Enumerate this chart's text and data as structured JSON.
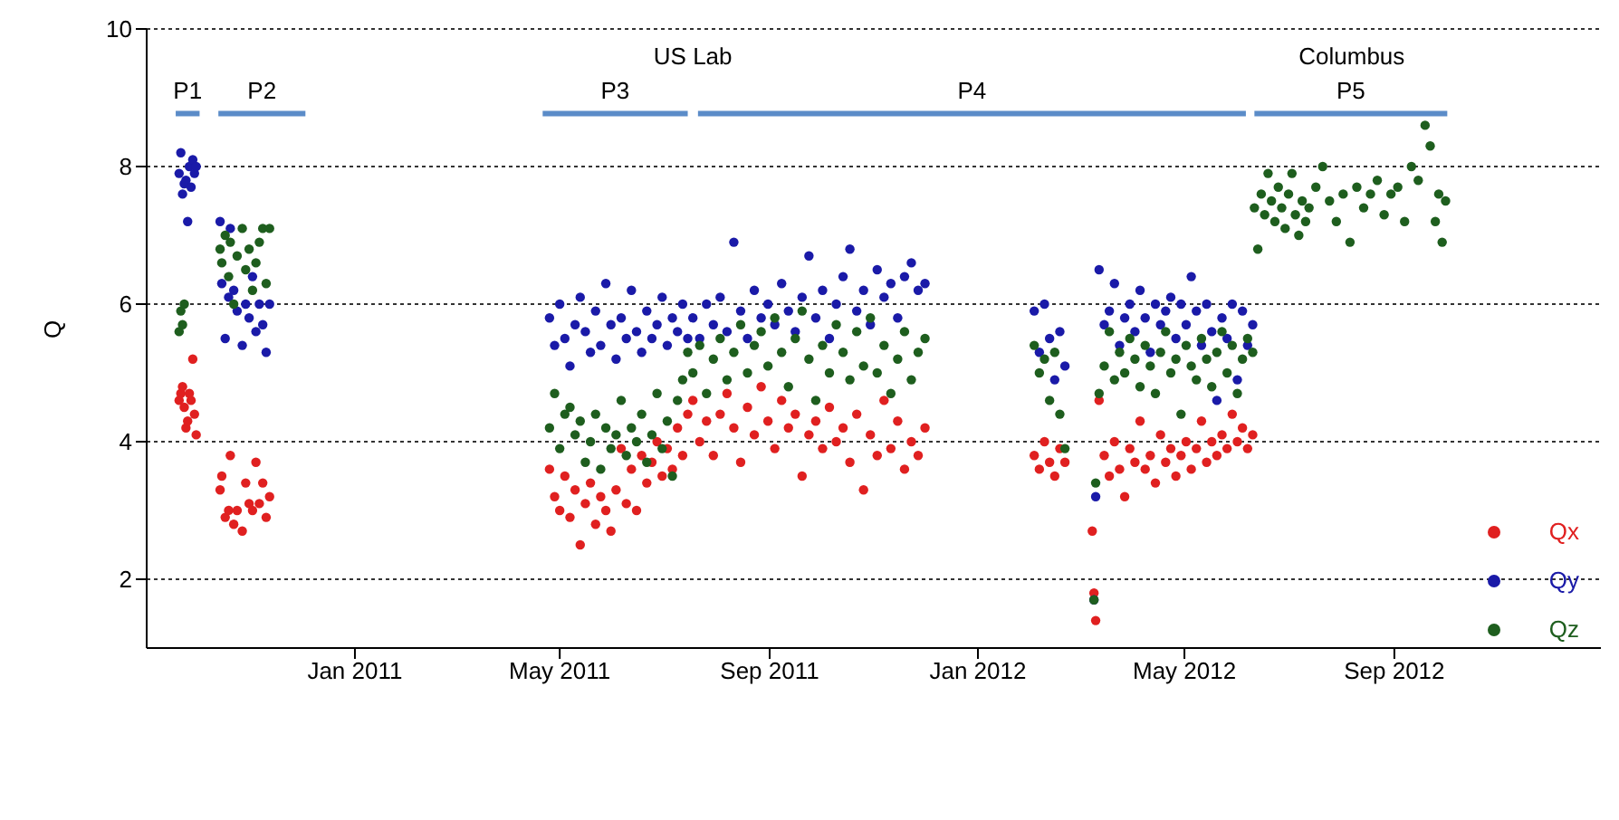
{
  "chart_data": {
    "type": "scatter",
    "ylabel": "Q",
    "xlim": [
      "2010-09-01",
      "2012-12-31"
    ],
    "xticks": [
      {
        "value": "2011-01-01",
        "label": "Jan 2011"
      },
      {
        "value": "2011-05-01",
        "label": "May 2011"
      },
      {
        "value": "2011-09-01",
        "label": "Sep 2011"
      },
      {
        "value": "2012-01-01",
        "label": "Jan 2012"
      },
      {
        "value": "2012-05-01",
        "label": "May 2012"
      },
      {
        "value": "2012-09-01",
        "label": "Sep 2012"
      }
    ],
    "ylim": [
      1,
      10
    ],
    "yticks": [
      2,
      4,
      6,
      8,
      10
    ],
    "grid": "y",
    "legend": "bottom right",
    "marker": "circle",
    "annotations": [
      {
        "text": "US Lab",
        "x": "2011-07-18",
        "y": 8.77
      },
      {
        "text": "Columbus",
        "x": "2012-08-07",
        "y": 8.77
      }
    ],
    "series": [
      {
        "type": "line",
        "name": "P1",
        "marker": "none",
        "color": "#5b8cc8",
        "x": [
          "2010-09-18",
          "2010-10-02"
        ],
        "values": [
          8.77,
          8.77
        ]
      },
      {
        "type": "line",
        "name": "P2",
        "marker": "none",
        "color": "#5b8cc8",
        "x": [
          "2010-10-13",
          "2010-12-03"
        ],
        "values": [
          8.77,
          8.77
        ]
      },
      {
        "type": "line",
        "name": "P3",
        "marker": "none",
        "color": "#5b8cc8",
        "x": [
          "2011-04-21",
          "2011-07-15"
        ],
        "values": [
          8.77,
          8.77
        ]
      },
      {
        "type": "line",
        "name": "P4",
        "marker": "none",
        "color": "#5b8cc8",
        "x": [
          "2011-07-21",
          "2012-06-06"
        ],
        "values": [
          8.77,
          8.77
        ]
      },
      {
        "type": "line",
        "name": "P5",
        "marker": "none",
        "color": "#5b8cc8",
        "x": [
          "2012-06-11",
          "2012-10-02"
        ],
        "values": [
          8.77,
          8.77
        ]
      },
      {
        "name": "Qx",
        "color": "#e02020",
        "x": [
          "2010-09-20",
          "2010-09-21",
          "2010-09-22",
          "2010-09-23",
          "2010-09-24",
          "2010-09-25",
          "2010-09-26",
          "2010-09-27",
          "2010-09-28",
          "2010-09-29",
          "2010-09-30",
          "2010-10-14",
          "2010-10-15",
          "2010-10-17",
          "2010-10-19",
          "2010-10-20",
          "2010-10-22",
          "2010-10-24",
          "2010-10-27",
          "2010-10-29",
          "2010-10-31",
          "2010-11-02",
          "2010-11-04",
          "2010-11-06",
          "2010-11-08",
          "2010-11-10",
          "2010-11-12",
          "2011-04-25",
          "2011-04-28",
          "2011-05-01",
          "2011-05-04",
          "2011-05-07",
          "2011-05-10",
          "2011-05-13",
          "2011-05-16",
          "2011-05-19",
          "2011-05-22",
          "2011-05-25",
          "2011-05-28",
          "2011-05-31",
          "2011-06-03",
          "2011-06-06",
          "2011-06-09",
          "2011-06-12",
          "2011-06-15",
          "2011-06-18",
          "2011-06-21",
          "2011-06-24",
          "2011-06-27",
          "2011-06-30",
          "2011-07-03",
          "2011-07-06",
          "2011-07-09",
          "2011-07-12",
          "2011-07-15",
          "2011-07-18",
          "2011-07-22",
          "2011-07-26",
          "2011-07-30",
          "2011-08-03",
          "2011-08-07",
          "2011-08-11",
          "2011-08-15",
          "2011-08-19",
          "2011-08-23",
          "2011-08-27",
          "2011-08-31",
          "2011-09-04",
          "2011-09-08",
          "2011-09-12",
          "2011-09-16",
          "2011-09-20",
          "2011-09-24",
          "2011-09-28",
          "2011-10-02",
          "2011-10-06",
          "2011-10-10",
          "2011-10-14",
          "2011-10-18",
          "2011-10-22",
          "2011-10-26",
          "2011-10-30",
          "2011-11-03",
          "2011-11-07",
          "2011-11-11",
          "2011-11-15",
          "2011-11-19",
          "2011-11-23",
          "2011-11-27",
          "2011-12-01",
          "2012-02-03",
          "2012-02-06",
          "2012-02-09",
          "2012-02-12",
          "2012-02-15",
          "2012-02-18",
          "2012-02-21",
          "2012-03-08",
          "2012-03-09",
          "2012-03-10",
          "2012-03-12",
          "2012-03-15",
          "2012-03-18",
          "2012-03-21",
          "2012-03-24",
          "2012-03-27",
          "2012-03-30",
          "2012-04-02",
          "2012-04-05",
          "2012-04-08",
          "2012-04-11",
          "2012-04-14",
          "2012-04-17",
          "2012-04-20",
          "2012-04-23",
          "2012-04-26",
          "2012-04-29",
          "2012-05-02",
          "2012-05-05",
          "2012-05-08",
          "2012-05-11",
          "2012-05-14",
          "2012-05-17",
          "2012-05-20",
          "2012-05-23",
          "2012-05-26",
          "2012-05-29",
          "2012-06-01",
          "2012-06-04",
          "2012-06-07",
          "2012-06-10"
        ],
        "values": [
          4.6,
          4.7,
          4.8,
          4.5,
          4.2,
          4.3,
          4.7,
          4.6,
          5.2,
          4.4,
          4.1,
          3.3,
          3.5,
          2.9,
          3.0,
          3.8,
          2.8,
          3.0,
          2.7,
          3.4,
          3.1,
          3.0,
          3.7,
          3.1,
          3.4,
          2.9,
          3.2,
          3.6,
          3.2,
          3.0,
          3.5,
          2.9,
          3.3,
          2.5,
          3.1,
          3.4,
          2.8,
          3.2,
          3.0,
          2.7,
          3.3,
          3.9,
          3.1,
          3.6,
          3.0,
          3.8,
          3.4,
          3.7,
          4.0,
          3.5,
          3.9,
          3.6,
          4.2,
          3.8,
          4.4,
          4.6,
          4.0,
          4.3,
          3.8,
          4.4,
          4.7,
          4.2,
          3.7,
          4.5,
          4.1,
          4.8,
          4.3,
          3.9,
          4.6,
          4.2,
          4.4,
          3.5,
          4.1,
          4.3,
          3.9,
          4.5,
          4.0,
          4.2,
          3.7,
          4.4,
          3.3,
          4.1,
          3.8,
          4.6,
          3.9,
          4.3,
          3.6,
          4.0,
          3.8,
          4.2,
          3.8,
          3.6,
          4.0,
          3.7,
          3.5,
          3.9,
          3.7,
          2.7,
          1.8,
          1.4,
          4.6,
          3.8,
          3.5,
          4.0,
          3.6,
          3.2,
          3.9,
          3.7,
          4.3,
          3.6,
          3.8,
          3.4,
          4.1,
          3.7,
          3.9,
          3.5,
          3.8,
          4.0,
          3.6,
          3.9,
          4.3,
          3.7,
          4.0,
          3.8,
          4.1,
          3.9,
          4.4,
          4.0,
          4.2,
          3.9,
          4.1
        ]
      },
      {
        "name": "Qy",
        "color": "#1a1aa8",
        "x": [
          "2010-09-20",
          "2010-09-21",
          "2010-09-22",
          "2010-09-23",
          "2010-09-24",
          "2010-09-25",
          "2010-09-26",
          "2010-09-27",
          "2010-09-28",
          "2010-09-29",
          "2010-09-30",
          "2010-10-14",
          "2010-10-15",
          "2010-10-17",
          "2010-10-19",
          "2010-10-20",
          "2010-10-22",
          "2010-10-24",
          "2010-10-27",
          "2010-10-29",
          "2010-10-31",
          "2010-11-02",
          "2010-11-04",
          "2010-11-06",
          "2010-11-08",
          "2010-11-10",
          "2010-11-12",
          "2011-04-25",
          "2011-04-28",
          "2011-05-01",
          "2011-05-04",
          "2011-05-07",
          "2011-05-10",
          "2011-05-13",
          "2011-05-16",
          "2011-05-19",
          "2011-05-22",
          "2011-05-25",
          "2011-05-28",
          "2011-05-31",
          "2011-06-03",
          "2011-06-06",
          "2011-06-09",
          "2011-06-12",
          "2011-06-15",
          "2011-06-18",
          "2011-06-21",
          "2011-06-24",
          "2011-06-27",
          "2011-06-30",
          "2011-07-03",
          "2011-07-06",
          "2011-07-09",
          "2011-07-12",
          "2011-07-15",
          "2011-07-18",
          "2011-07-22",
          "2011-07-26",
          "2011-07-30",
          "2011-08-03",
          "2011-08-07",
          "2011-08-11",
          "2011-08-15",
          "2011-08-19",
          "2011-08-23",
          "2011-08-27",
          "2011-08-31",
          "2011-09-04",
          "2011-09-08",
          "2011-09-12",
          "2011-09-16",
          "2011-09-20",
          "2011-09-24",
          "2011-09-28",
          "2011-10-02",
          "2011-10-06",
          "2011-10-10",
          "2011-10-14",
          "2011-10-18",
          "2011-10-22",
          "2011-10-26",
          "2011-10-30",
          "2011-11-03",
          "2011-11-07",
          "2011-11-11",
          "2011-11-15",
          "2011-11-19",
          "2011-11-23",
          "2011-11-27",
          "2011-12-01",
          "2012-02-03",
          "2012-02-06",
          "2012-02-09",
          "2012-02-12",
          "2012-02-15",
          "2012-02-18",
          "2012-02-21",
          "2012-03-09",
          "2012-03-10",
          "2012-03-12",
          "2012-03-15",
          "2012-03-18",
          "2012-03-21",
          "2012-03-24",
          "2012-03-27",
          "2012-03-30",
          "2012-04-02",
          "2012-04-05",
          "2012-04-08",
          "2012-04-11",
          "2012-04-14",
          "2012-04-17",
          "2012-04-20",
          "2012-04-23",
          "2012-04-26",
          "2012-04-29",
          "2012-05-02",
          "2012-05-05",
          "2012-05-08",
          "2012-05-11",
          "2012-05-14",
          "2012-05-17",
          "2012-05-20",
          "2012-05-23",
          "2012-05-26",
          "2012-05-29",
          "2012-06-01",
          "2012-06-04",
          "2012-06-07",
          "2012-06-10"
        ],
        "values": [
          7.9,
          8.2,
          7.6,
          7.75,
          7.8,
          7.2,
          8.0,
          7.7,
          8.1,
          7.9,
          8.0,
          7.2,
          6.3,
          5.5,
          6.1,
          7.1,
          6.2,
          5.9,
          5.4,
          6.0,
          5.8,
          6.4,
          5.6,
          6.0,
          5.7,
          5.3,
          6.0,
          5.8,
          5.4,
          6.0,
          5.5,
          5.1,
          5.7,
          6.1,
          5.6,
          5.3,
          5.9,
          5.4,
          6.3,
          5.7,
          5.2,
          5.8,
          5.5,
          6.2,
          5.6,
          5.3,
          5.9,
          5.5,
          5.7,
          6.1,
          5.4,
          5.8,
          5.6,
          6.0,
          5.5,
          5.8,
          5.5,
          6.0,
          5.7,
          6.1,
          5.6,
          6.9,
          5.9,
          5.5,
          6.2,
          5.8,
          6.0,
          5.7,
          6.3,
          5.9,
          5.6,
          6.1,
          6.7,
          5.8,
          6.2,
          5.5,
          6.0,
          6.4,
          6.8,
          5.9,
          6.2,
          5.7,
          6.5,
          6.1,
          6.3,
          5.8,
          6.4,
          6.6,
          6.2,
          6.3,
          5.9,
          5.3,
          6.0,
          5.5,
          4.9,
          5.6,
          5.1,
          1.7,
          3.2,
          6.5,
          5.7,
          5.9,
          6.3,
          5.4,
          5.8,
          6.0,
          5.6,
          6.2,
          5.8,
          5.3,
          6.0,
          5.7,
          5.9,
          6.1,
          5.5,
          6.0,
          5.7,
          6.4,
          5.9,
          5.4,
          6.0,
          5.6,
          4.6,
          5.8,
          5.5,
          6.0,
          4.9,
          5.9,
          5.4,
          5.7
        ]
      },
      {
        "name": "Qz",
        "color": "#1e5e1e",
        "x": [
          "2010-09-20",
          "2010-09-21",
          "2010-09-22",
          "2010-09-23",
          "2010-10-14",
          "2010-10-15",
          "2010-10-17",
          "2010-10-19",
          "2010-10-20",
          "2010-10-22",
          "2010-10-24",
          "2010-10-27",
          "2010-10-29",
          "2010-10-31",
          "2010-11-02",
          "2010-11-04",
          "2010-11-06",
          "2010-11-08",
          "2010-11-10",
          "2010-11-12",
          "2011-04-25",
          "2011-04-28",
          "2011-05-01",
          "2011-05-04",
          "2011-05-07",
          "2011-05-10",
          "2011-05-13",
          "2011-05-16",
          "2011-05-19",
          "2011-05-22",
          "2011-05-25",
          "2011-05-28",
          "2011-05-31",
          "2011-06-03",
          "2011-06-06",
          "2011-06-09",
          "2011-06-12",
          "2011-06-15",
          "2011-06-18",
          "2011-06-21",
          "2011-06-24",
          "2011-06-27",
          "2011-06-30",
          "2011-07-03",
          "2011-07-06",
          "2011-07-09",
          "2011-07-12",
          "2011-07-15",
          "2011-07-18",
          "2011-07-22",
          "2011-07-26",
          "2011-07-30",
          "2011-08-03",
          "2011-08-07",
          "2011-08-11",
          "2011-08-15",
          "2011-08-19",
          "2011-08-23",
          "2011-08-27",
          "2011-08-31",
          "2011-09-04",
          "2011-09-08",
          "2011-09-12",
          "2011-09-16",
          "2011-09-20",
          "2011-09-24",
          "2011-09-28",
          "2011-10-02",
          "2011-10-06",
          "2011-10-10",
          "2011-10-14",
          "2011-10-18",
          "2011-10-22",
          "2011-10-26",
          "2011-10-30",
          "2011-11-03",
          "2011-11-07",
          "2011-11-11",
          "2011-11-15",
          "2011-11-19",
          "2011-11-23",
          "2011-11-27",
          "2011-12-01",
          "2012-02-03",
          "2012-02-06",
          "2012-02-09",
          "2012-02-12",
          "2012-02-15",
          "2012-02-18",
          "2012-02-21",
          "2012-03-09",
          "2012-03-10",
          "2012-03-12",
          "2012-03-15",
          "2012-03-18",
          "2012-03-21",
          "2012-03-24",
          "2012-03-27",
          "2012-03-30",
          "2012-04-02",
          "2012-04-05",
          "2012-04-08",
          "2012-04-11",
          "2012-04-14",
          "2012-04-17",
          "2012-04-20",
          "2012-04-23",
          "2012-04-26",
          "2012-04-29",
          "2012-05-02",
          "2012-05-05",
          "2012-05-08",
          "2012-05-11",
          "2012-05-14",
          "2012-05-17",
          "2012-05-20",
          "2012-05-23",
          "2012-05-26",
          "2012-05-29",
          "2012-06-01",
          "2012-06-04",
          "2012-06-07",
          "2012-06-10",
          "2012-06-11",
          "2012-06-13",
          "2012-06-15",
          "2012-06-17",
          "2012-06-19",
          "2012-06-21",
          "2012-06-23",
          "2012-06-25",
          "2012-06-27",
          "2012-06-29",
          "2012-07-01",
          "2012-07-03",
          "2012-07-05",
          "2012-07-07",
          "2012-07-09",
          "2012-07-11",
          "2012-07-13",
          "2012-07-17",
          "2012-07-21",
          "2012-07-25",
          "2012-07-29",
          "2012-08-02",
          "2012-08-06",
          "2012-08-10",
          "2012-08-14",
          "2012-08-18",
          "2012-08-22",
          "2012-08-26",
          "2012-08-30",
          "2012-09-03",
          "2012-09-07",
          "2012-09-11",
          "2012-09-15",
          "2012-09-19",
          "2012-09-22",
          "2012-09-25",
          "2012-09-27",
          "2012-09-29",
          "2012-10-01"
        ],
        "values": [
          5.6,
          5.9,
          5.7,
          6.0,
          6.8,
          6.6,
          7.0,
          6.4,
          6.9,
          6.0,
          6.7,
          7.1,
          6.5,
          6.8,
          6.2,
          6.6,
          6.9,
          7.1,
          6.3,
          7.1,
          4.2,
          4.7,
          3.9,
          4.4,
          4.5,
          4.1,
          4.3,
          3.7,
          4.0,
          4.4,
          3.6,
          4.2,
          3.9,
          4.1,
          4.6,
          3.8,
          4.2,
          4.0,
          4.4,
          3.7,
          4.1,
          4.7,
          3.9,
          4.3,
          3.5,
          4.6,
          4.9,
          5.3,
          5.0,
          5.4,
          4.7,
          5.2,
          5.5,
          4.9,
          5.3,
          5.7,
          5.0,
          5.4,
          5.6,
          5.1,
          5.8,
          5.3,
          4.8,
          5.5,
          5.9,
          5.2,
          4.6,
          5.4,
          5.0,
          5.7,
          5.3,
          4.9,
          5.6,
          5.1,
          5.8,
          5.0,
          5.4,
          4.7,
          5.2,
          5.6,
          4.9,
          5.3,
          5.5,
          5.4,
          5.0,
          5.2,
          4.6,
          5.3,
          4.4,
          3.9,
          1.7,
          3.4,
          4.7,
          5.1,
          5.6,
          4.9,
          5.3,
          5.0,
          5.5,
          5.2,
          4.8,
          5.4,
          5.1,
          4.7,
          5.3,
          5.6,
          5.0,
          5.2,
          4.4,
          5.4,
          5.1,
          4.9,
          5.5,
          5.2,
          4.8,
          5.3,
          5.6,
          5.0,
          5.4,
          4.7,
          5.2,
          5.5,
          5.3,
          7.4,
          6.8,
          7.6,
          7.3,
          7.9,
          7.5,
          7.2,
          7.7,
          7.4,
          7.1,
          7.6,
          7.9,
          7.3,
          7.0,
          7.5,
          7.2,
          7.4,
          7.7,
          8.0,
          7.5,
          7.2,
          7.6,
          6.9,
          7.7,
          7.4,
          7.6,
          7.8,
          7.3,
          7.6,
          7.7,
          7.2,
          8.0,
          7.8,
          8.6,
          8.3,
          7.2,
          7.6,
          6.9,
          7.5
        ]
      }
    ]
  }
}
